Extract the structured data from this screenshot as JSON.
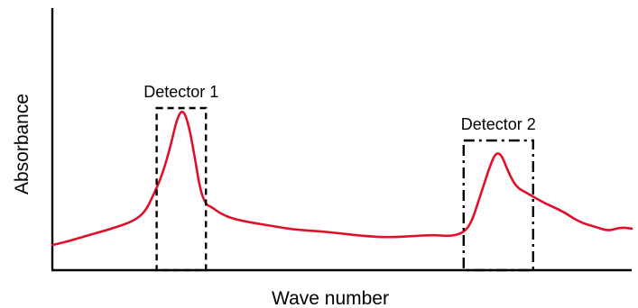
{
  "chart_data": {
    "type": "line",
    "xlabel": "Wave number",
    "ylabel": "Absorbance",
    "xlim": [
      0,
      100
    ],
    "ylim": [
      0,
      100
    ],
    "grid": false,
    "series": [
      {
        "color": "#e0102a",
        "x": [
          0,
          2,
          5,
          8,
          11,
          14,
          16,
          17.5,
          19,
          20.5,
          21.5,
          22.5,
          23.5,
          24.5,
          25.5,
          26.5,
          27.5,
          29,
          31,
          34,
          38,
          42,
          46,
          50,
          54,
          58,
          62,
          66,
          68,
          70,
          71.5,
          72.5,
          73.5,
          74.5,
          75.5,
          76.5,
          77.5,
          78.5,
          80,
          82,
          85,
          88,
          91,
          94,
          96,
          98,
          100
        ],
        "y": [
          10,
          11,
          13,
          15,
          17,
          19.5,
          23,
          30,
          38,
          50,
          60,
          64,
          58,
          46,
          32,
          26,
          25,
          22.5,
          20.5,
          19,
          17.5,
          16,
          15.5,
          14.5,
          13.5,
          13,
          13.5,
          14,
          13.5,
          14,
          16,
          20,
          27,
          34,
          41,
          46.5,
          46,
          40,
          33,
          30.5,
          26.5,
          23.5,
          19,
          17,
          15.5,
          17,
          16.5
        ]
      }
    ],
    "detectors": [
      {
        "label": "Detector 1",
        "x_range": [
          18,
          26.5
        ],
        "style": "dashed"
      },
      {
        "label": "Detector 2",
        "x_range": [
          71,
          83
        ],
        "style": "dash-dot"
      }
    ]
  }
}
